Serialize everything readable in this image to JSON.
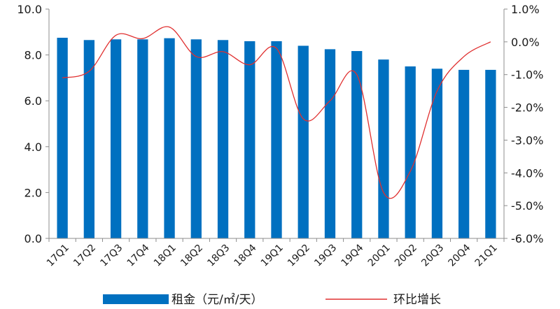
{
  "chart_data": {
    "type": "bar+line",
    "categories": [
      "17Q1",
      "17Q2",
      "17Q3",
      "17Q4",
      "18Q1",
      "18Q2",
      "18Q3",
      "18Q4",
      "19Q1",
      "19Q2",
      "19Q3",
      "19Q4",
      "20Q1",
      "20Q2",
      "20Q3",
      "20Q4",
      "21Q1"
    ],
    "series": [
      {
        "name": "租金（元/㎡/天）",
        "type": "bar",
        "axis": "left",
        "color": "#0070C0",
        "values": [
          8.75,
          8.65,
          8.68,
          8.68,
          8.73,
          8.68,
          8.65,
          8.6,
          8.6,
          8.4,
          8.25,
          8.17,
          7.8,
          7.5,
          7.4,
          7.35,
          7.35
        ]
      },
      {
        "name": "环比增长",
        "type": "line",
        "axis": "right",
        "color": "#E03030",
        "values": [
          -1.1,
          -0.9,
          0.2,
          0.1,
          0.45,
          -0.45,
          -0.3,
          -0.7,
          -0.2,
          -2.35,
          -1.8,
          -1.0,
          -4.6,
          -3.95,
          -1.5,
          -0.45,
          0.0
        ]
      }
    ],
    "left_axis": {
      "min": 0,
      "max": 10,
      "ticks": [
        "0.0",
        "2.0",
        "4.0",
        "6.0",
        "8.0",
        "10.0"
      ]
    },
    "right_axis": {
      "min": -6,
      "max": 1,
      "ticks": [
        "-6.0%",
        "-5.0%",
        "-4.0%",
        "-3.0%",
        "-2.0%",
        "-1.0%",
        "0.0%",
        "1.0%"
      ]
    },
    "grid": false,
    "legend_position": "bottom"
  }
}
